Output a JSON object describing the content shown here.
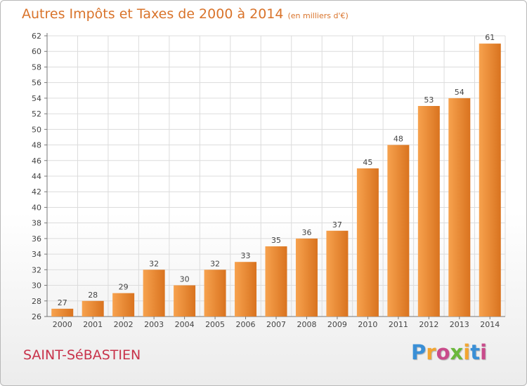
{
  "header": {
    "title": "Autres Impôts et Taxes de 2000 à 2014",
    "subtitle": "(en milliers d'€)"
  },
  "footer": {
    "town": "SAINT-SéBASTIEN",
    "logo_letters": [
      "P",
      "r",
      "o",
      "x",
      "i",
      "t",
      "i"
    ],
    "logo_colors": [
      "#3a8fd6",
      "#f2a531",
      "#c94b8b",
      "#6bb83c",
      "#f2a531",
      "#3a8fd6",
      "#c94b8b"
    ]
  },
  "chart_data": {
    "type": "bar",
    "title": "Autres Impôts et Taxes de 2000 à 2014",
    "xlabel": "",
    "ylabel": "",
    "categories": [
      "2000",
      "2001",
      "2002",
      "2003",
      "2004",
      "2005",
      "2006",
      "2007",
      "2008",
      "2009",
      "2010",
      "2011",
      "2012",
      "2013",
      "2014"
    ],
    "values": [
      27,
      28,
      29,
      32,
      30,
      32,
      33,
      35,
      36,
      37,
      45,
      48,
      53,
      54,
      61
    ],
    "ylim": [
      26,
      62
    ],
    "yticks": [
      26,
      28,
      30,
      32,
      34,
      36,
      38,
      40,
      42,
      44,
      46,
      48,
      50,
      52,
      54,
      56,
      58,
      60,
      62
    ],
    "grid": true,
    "bar_color_light": "#f7a24e",
    "bar_color_dark": "#d9731f",
    "grid_color": "#dcdcdc",
    "label_color": "#444444"
  }
}
